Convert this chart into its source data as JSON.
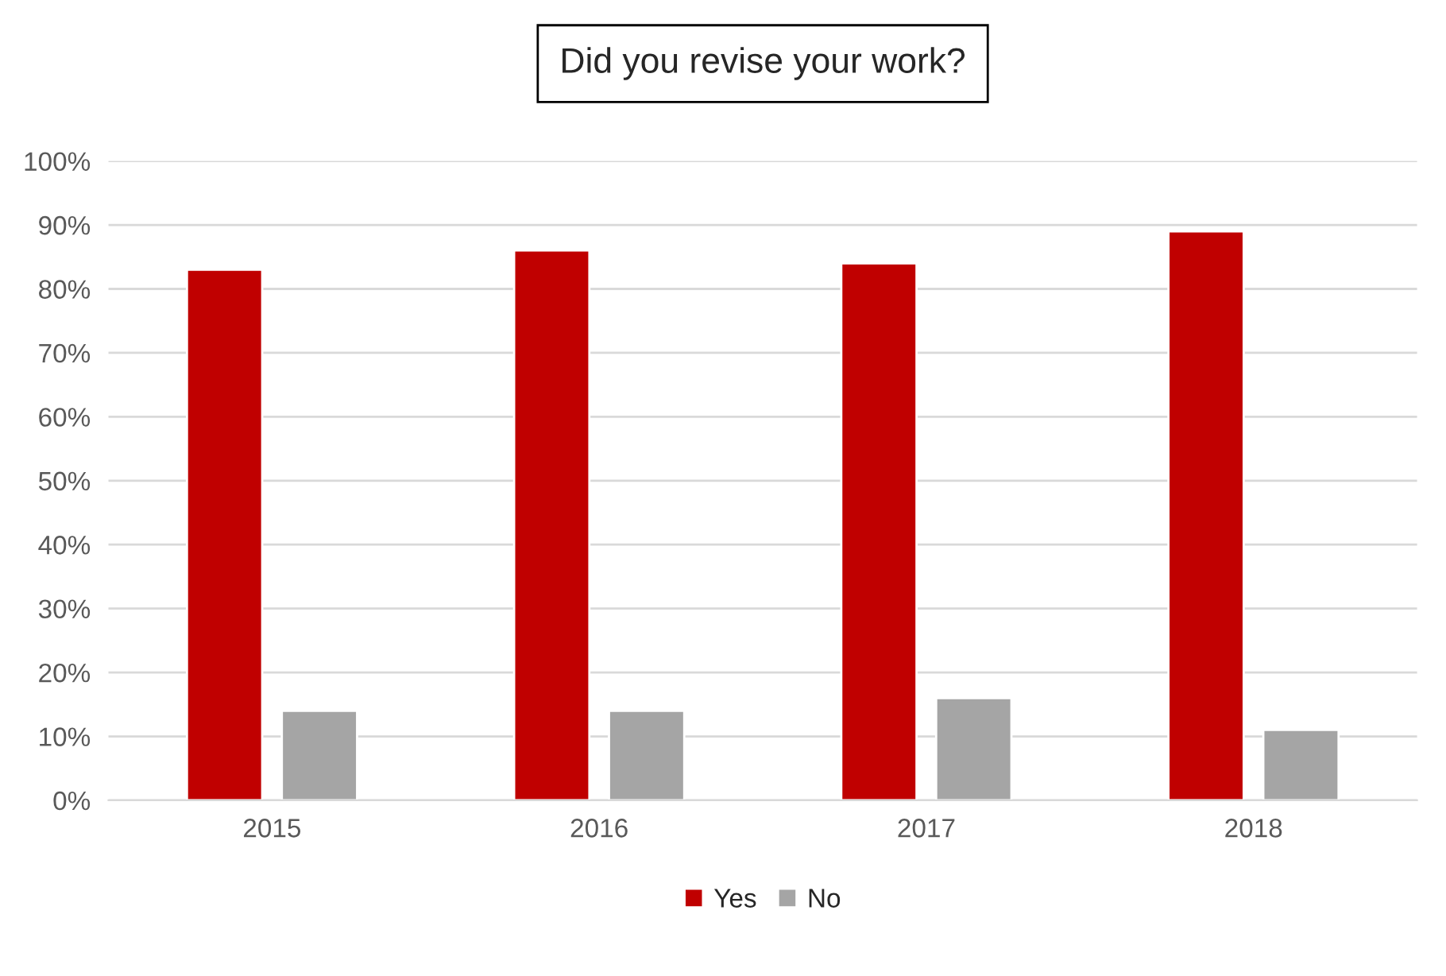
{
  "chart_data": {
    "type": "bar",
    "title": "Did you revise your work?",
    "categories": [
      "2015",
      "2016",
      "2017",
      "2018"
    ],
    "series": [
      {
        "name": "Yes",
        "color": "#c00000",
        "values": [
          83,
          86,
          84,
          89
        ]
      },
      {
        "name": "No",
        "color": "#a5a5a5",
        "values": [
          14,
          14,
          16,
          11
        ]
      }
    ],
    "ylim": [
      0,
      100
    ],
    "yticks": [
      {
        "value": 0,
        "label": "0%"
      },
      {
        "value": 10,
        "label": "10%"
      },
      {
        "value": 20,
        "label": "20%"
      },
      {
        "value": 30,
        "label": "30%"
      },
      {
        "value": 40,
        "label": "40%"
      },
      {
        "value": 50,
        "label": "50%"
      },
      {
        "value": 60,
        "label": "60%"
      },
      {
        "value": 70,
        "label": "70%"
      },
      {
        "value": 80,
        "label": "80%"
      },
      {
        "value": 90,
        "label": "90%"
      },
      {
        "value": 100,
        "label": "100%"
      }
    ],
    "grid": "y",
    "legend": "bottom"
  }
}
